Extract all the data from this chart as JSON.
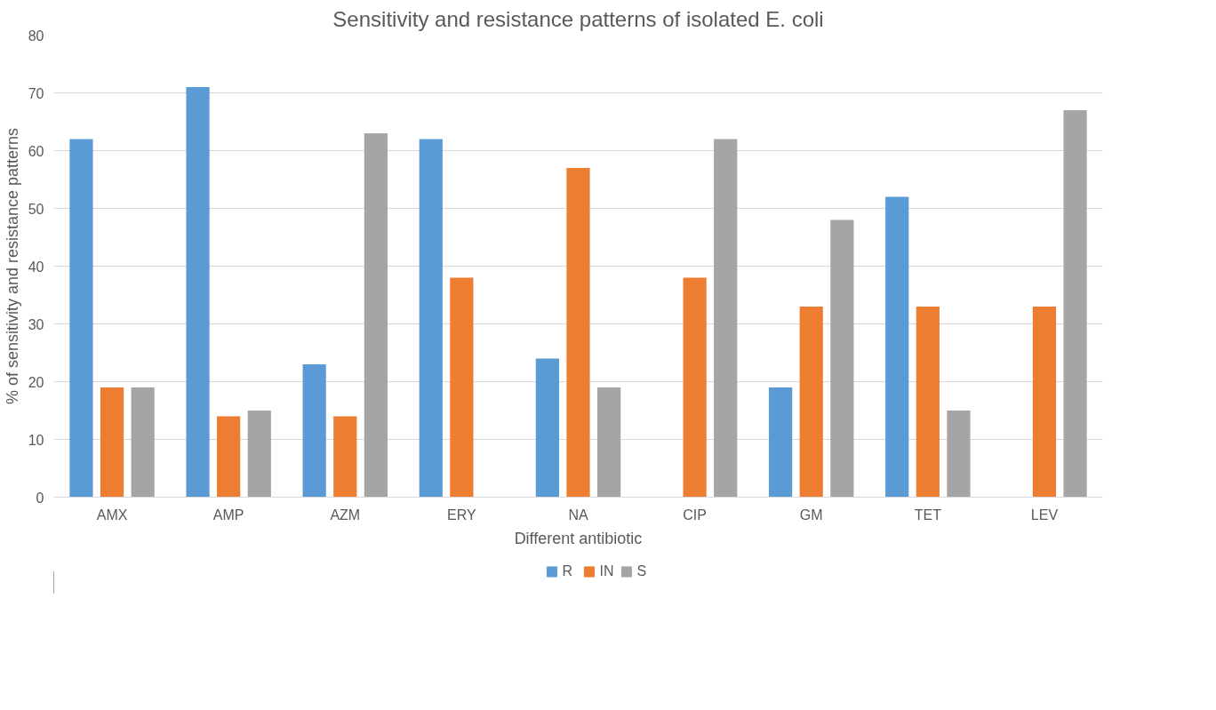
{
  "chart_data": {
    "type": "bar",
    "title": "Sensitivity and resistance patterns of isolated E. coli",
    "xlabel": "Different antibiotic",
    "ylabel": "% of sensitivity and resistance patterns",
    "categories": [
      "AMX",
      "AMP",
      "AZM",
      "ERY",
      "NA",
      "CIP",
      "GM",
      "TET",
      "LEV"
    ],
    "series": [
      {
        "name": "R",
        "color": "#5b9bd5",
        "values": [
          62,
          71,
          23,
          62,
          24,
          0,
          19,
          52,
          0
        ]
      },
      {
        "name": "IN",
        "color": "#ed7d31",
        "values": [
          19,
          14,
          14,
          38,
          57,
          38,
          33,
          33,
          33
        ]
      },
      {
        "name": "S",
        "color": "#a5a5a5",
        "values": [
          19,
          15,
          63,
          0,
          19,
          62,
          48,
          15,
          67
        ]
      }
    ],
    "ylim": [
      0,
      80
    ],
    "yticks": [
      0,
      10,
      20,
      30,
      40,
      50,
      60,
      70,
      80
    ],
    "grid": "y",
    "legend": "bottom"
  }
}
